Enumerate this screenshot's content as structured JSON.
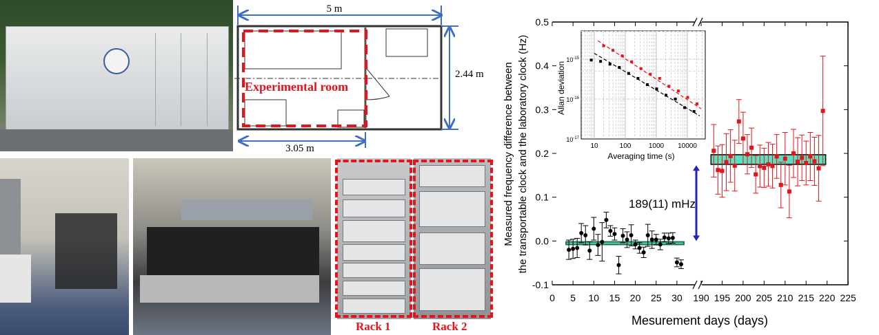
{
  "photos": {
    "container_photo": "transportable-clock-container",
    "floor_plan": {
      "width_label": "5 m",
      "height_label": "2.44 m",
      "room_width_label": "3.05 m",
      "room_label": "Experimental room"
    },
    "racks": [
      {
        "label": "Rack 1"
      },
      {
        "label": "Rack 2"
      }
    ]
  },
  "colors": {
    "red": "#e4141b",
    "blue": "#3f6fc4",
    "band": "#5ee0c0",
    "band_dark": "#1f6f55",
    "arrow": "#2323b4"
  },
  "chart_data": [
    {
      "type": "scatter",
      "xlabel": "Mesurement days (days)",
      "ylabel_line1": "Measured frequency difference between",
      "ylabel_line2": "the transportable clock and the laboratory clock (Hz)",
      "xlim_segments": [
        [
          0,
          35
        ],
        [
          188,
          225
        ]
      ],
      "ylim": [
        -0.1,
        0.5
      ],
      "xticks": [
        0,
        5,
        10,
        15,
        20,
        25,
        30,
        190,
        195,
        200,
        205,
        210,
        215,
        220,
        225
      ],
      "yticks": [
        "-0.1",
        "0.0",
        "0.1",
        "0.2",
        "0.3",
        "0.4",
        "0.5"
      ],
      "annotation": "189(11) mHz",
      "series": [
        {
          "color": "#000000",
          "marker": "circle",
          "x": [
            4,
            5,
            6,
            7,
            8,
            9,
            10,
            11,
            12,
            13,
            14,
            15,
            16,
            17,
            18,
            19,
            20,
            21,
            22,
            23,
            24,
            25,
            26,
            27,
            28,
            29,
            30,
            31
          ],
          "y": [
            -0.02,
            -0.018,
            -0.016,
            0.018,
            0.013,
            -0.022,
            0.028,
            -0.009,
            -0.002,
            0.048,
            0.023,
            0.016,
            -0.055,
            0.012,
            0.003,
            0.013,
            -0.008,
            -0.016,
            -0.026,
            0.013,
            0.003,
            0.003,
            -0.008,
            0.008,
            0.006,
            0.007,
            -0.049,
            -0.053
          ],
          "err": [
            0.022,
            0.022,
            0.022,
            0.022,
            0.022,
            0.02,
            0.026,
            0.024,
            0.044,
            0.018,
            0.012,
            0.014,
            0.02,
            0.016,
            0.018,
            0.024,
            0.01,
            0.012,
            0.012,
            0.025,
            0.02,
            0.012,
            0.012,
            0.01,
            0.012,
            0.012,
            0.01,
            0.01
          ],
          "mean_band": [
            -0.008,
            -0.002
          ]
        },
        {
          "color": "#e4141b",
          "marker": "square",
          "x": [
            193,
            194,
            195,
            196,
            197,
            198,
            199,
            200,
            201,
            202,
            203,
            204,
            205,
            206,
            207,
            208,
            209,
            210,
            211,
            212,
            213,
            214,
            215,
            216,
            217,
            218,
            219
          ],
          "y": [
            0.206,
            0.162,
            0.16,
            0.18,
            0.194,
            0.172,
            0.273,
            0.234,
            0.198,
            0.213,
            0.152,
            0.171,
            0.167,
            0.175,
            0.171,
            0.193,
            0.128,
            0.188,
            0.113,
            0.2,
            0.181,
            0.19,
            0.178,
            0.193,
            0.182,
            0.166,
            0.297
          ],
          "err": [
            0.06,
            0.055,
            0.06,
            0.065,
            0.06,
            0.058,
            0.05,
            0.06,
            0.045,
            0.045,
            0.043,
            0.048,
            0.045,
            0.05,
            0.05,
            0.05,
            0.052,
            0.06,
            0.06,
            0.055,
            0.055,
            0.052,
            0.05,
            0.055,
            0.055,
            0.075,
            0.125
          ],
          "mean_band": [
            0.175,
            0.197
          ]
        }
      ]
    },
    {
      "type": "scatter",
      "xlabel": "Averaging time (s)",
      "ylabel": "Allan deviation",
      "xscale": "log",
      "yscale": "log",
      "xlim": [
        4,
        40000
      ],
      "ylim": [
        1e-17,
        5e-15
      ],
      "xticks": [
        "10",
        "100",
        "1000",
        "10000"
      ],
      "yticks": [
        {
          "base": "10",
          "exp": "-15"
        },
        {
          "base": "10",
          "exp": "-16"
        },
        {
          "base": "10",
          "exp": "-17"
        }
      ],
      "grid": true,
      "series": [
        {
          "color": "#000000",
          "x": [
            8,
            16,
            32,
            64,
            128,
            256,
            512,
            1024,
            2048,
            4096,
            8192,
            16384
          ],
          "y": [
            9.5e-16,
            8.8e-16,
            7.5e-16,
            6.2e-16,
            4.4e-16,
            3.3e-16,
            2.3e-16,
            1.8e-16,
            1.25e-16,
            1e-16,
            6.1e-17,
            4.9e-17
          ],
          "fit": {
            "x": [
              10,
              25000
            ],
            "y": [
              1.4e-15,
              3.8e-17
            ]
          }
        },
        {
          "color": "#e4141b",
          "x": [
            20,
            40,
            80,
            160,
            320,
            640,
            1280,
            2560,
            5120,
            10240,
            20480
          ],
          "y": [
            2.16e-15,
            1.67e-15,
            1.21e-15,
            8.6e-16,
            5.8e-16,
            4.2e-16,
            3.3e-16,
            2.1e-16,
            1.6e-16,
            1.1e-16,
            7.6e-17
          ],
          "fit": {
            "x": [
              13,
              28000
            ],
            "y": [
              2.9e-15,
              5.7e-17
            ]
          }
        }
      ]
    }
  ]
}
